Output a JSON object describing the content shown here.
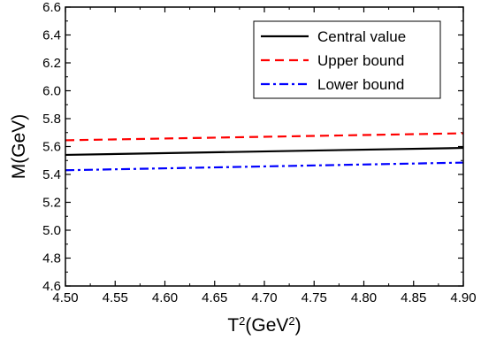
{
  "chart_data": {
    "type": "line",
    "title": "",
    "xlabel": {
      "base": "T",
      "sup": "2",
      "open": "(GeV",
      "sup2": "2",
      "close": ")"
    },
    "ylabel": "M(GeV)",
    "xlim": [
      4.5,
      4.9
    ],
    "ylim": [
      4.6,
      6.6
    ],
    "xticks": [
      "4.50",
      "4.55",
      "4.60",
      "4.65",
      "4.70",
      "4.75",
      "4.80",
      "4.85",
      "4.90"
    ],
    "yticks": [
      "4.6",
      "4.8",
      "5.0",
      "5.2",
      "5.4",
      "5.6",
      "5.8",
      "6.0",
      "6.2",
      "6.4",
      "6.6"
    ],
    "legend_position": "top-right",
    "grid": false,
    "series": [
      {
        "name": "Central value",
        "color": "#000000",
        "dash": "solid",
        "x": [
          4.5,
          4.9
        ],
        "y": [
          5.54,
          5.59
        ]
      },
      {
        "name": "Upper bound",
        "color": "#ff0000",
        "dash": "dashed",
        "x": [
          4.5,
          4.9
        ],
        "y": [
          5.645,
          5.695
        ]
      },
      {
        "name": "Lower bound",
        "color": "#0000ff",
        "dash": "dashdot",
        "x": [
          4.5,
          4.9
        ],
        "y": [
          5.43,
          5.485
        ]
      }
    ]
  }
}
